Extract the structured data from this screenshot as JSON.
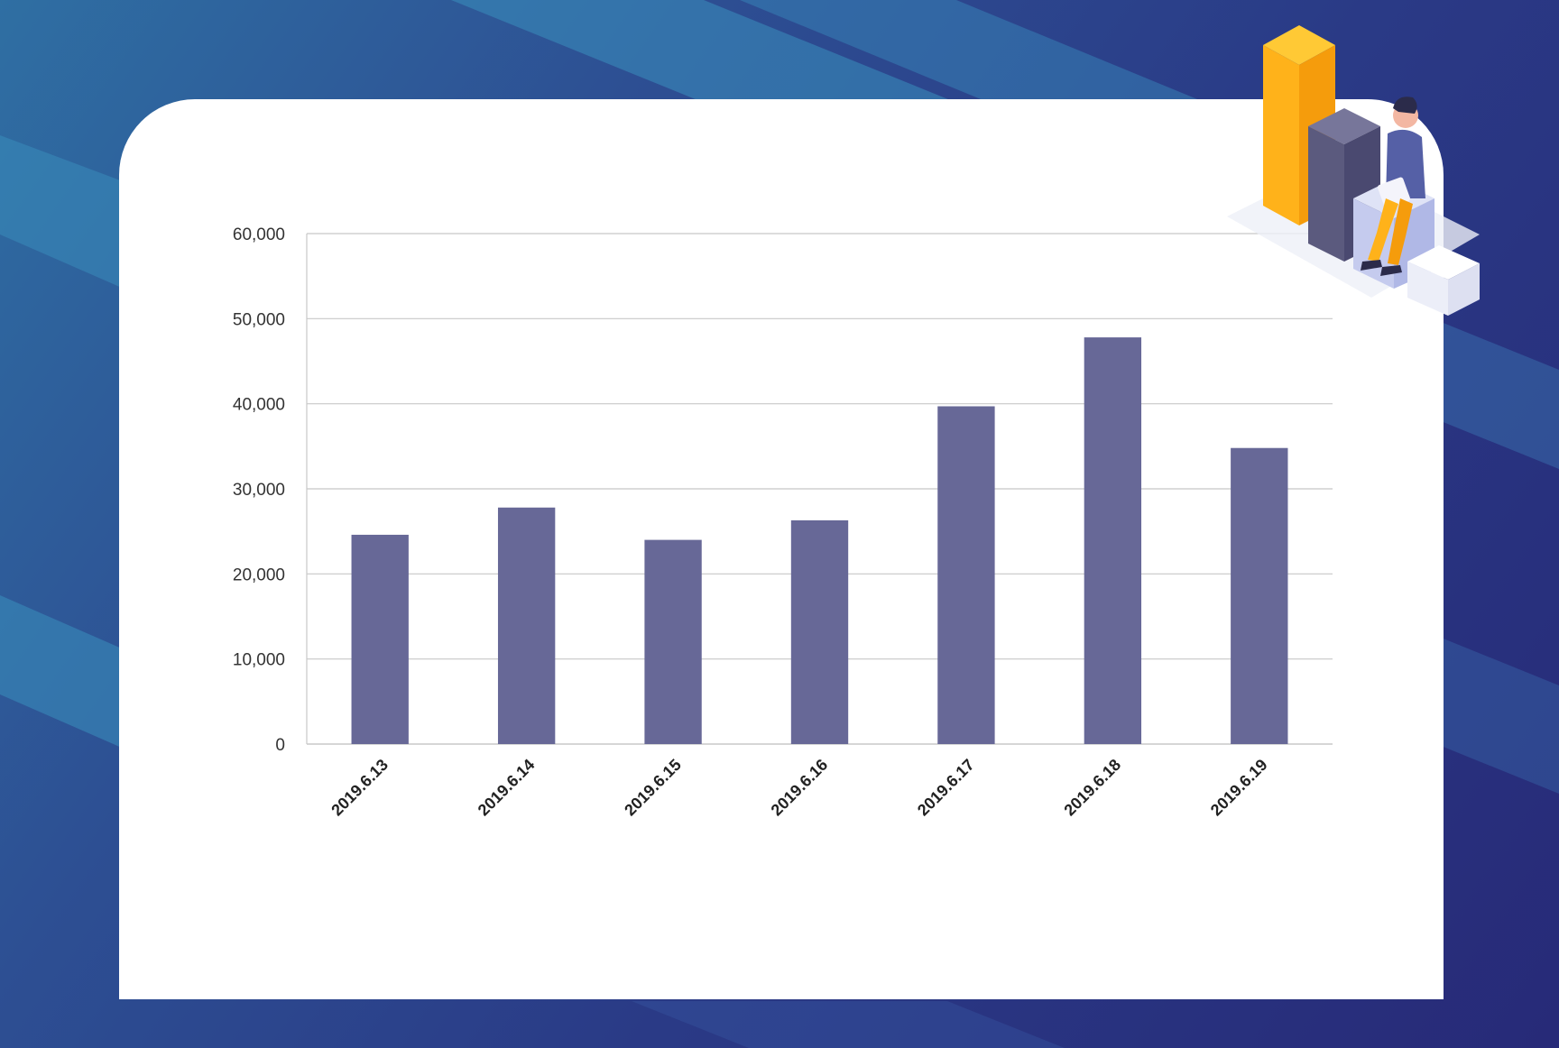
{
  "colors": {
    "bar": "#676897",
    "grid": "#c8c8c8",
    "card": "#ffffff",
    "background_light": "#3588b8",
    "background_dark": "#262a78",
    "accent_orange": "#ffb21a",
    "accent_gray": "#5b5a7e"
  },
  "chart_data": {
    "type": "bar",
    "title": "",
    "xlabel": "",
    "ylabel": "",
    "categories": [
      "2019.6.13",
      "2019.6.14",
      "2019.6.15",
      "2019.6.16",
      "2019.6.17",
      "2019.6.18",
      "2019.6.19"
    ],
    "values": [
      24600,
      27800,
      24000,
      26300,
      39700,
      47800,
      34800
    ],
    "ylim": [
      0,
      60000
    ],
    "yticks": [
      "0",
      "10,000",
      "20,000",
      "30,000",
      "40,000",
      "50,000",
      "60,000"
    ],
    "grid": true,
    "legend": "none"
  },
  "illustration": {
    "icon": "person-with-laptop-on-bar-chart-icon"
  }
}
